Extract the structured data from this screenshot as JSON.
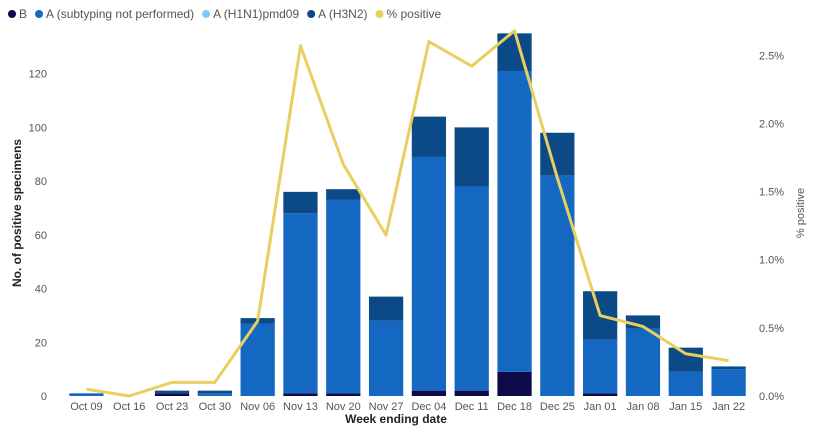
{
  "chart_data": {
    "type": "bar",
    "stacked": true,
    "categories": [
      "Oct 09",
      "Oct 16",
      "Oct 23",
      "Oct 30",
      "Nov 06",
      "Nov 13",
      "Nov 20",
      "Nov 27",
      "Dec 04",
      "Dec 11",
      "Dec 18",
      "Dec 25",
      "Jan 01",
      "Jan 08",
      "Jan 15",
      "Jan 22"
    ],
    "series": [
      {
        "name": "B",
        "color": "#0d0a4a",
        "values": [
          0,
          0,
          1,
          0,
          0,
          1,
          1,
          0,
          2,
          2,
          9,
          0,
          1,
          0,
          0,
          0
        ]
      },
      {
        "name": "A (subtyping not performed)",
        "color": "#1468c2",
        "values": [
          1,
          0,
          0,
          1,
          27,
          67,
          72,
          28,
          87,
          76,
          112,
          82,
          20,
          25,
          9,
          10
        ]
      },
      {
        "name": "A (H1N1)pmd09",
        "color": "#86c8f0",
        "values": [
          0,
          0,
          0,
          0,
          0,
          0,
          0,
          0,
          0,
          0,
          0,
          0,
          0,
          0,
          0,
          0
        ]
      },
      {
        "name": "A (H3N2)",
        "color": "#0b4a86",
        "values": [
          0,
          0,
          1,
          1,
          2,
          8,
          4,
          9,
          15,
          22,
          14,
          16,
          18,
          5,
          9,
          1
        ]
      }
    ],
    "line_series": {
      "name": "% positive",
      "color": "#e8cf5e",
      "values": [
        0.05,
        0.0,
        0.1,
        0.1,
        0.55,
        2.57,
        1.7,
        1.18,
        2.6,
        2.42,
        2.68,
        1.6,
        0.59,
        0.51,
        0.31,
        0.26
      ]
    },
    "xlabel": "Week ending date",
    "ylabel": "No. of positive specimens",
    "y2label": "% positive",
    "ylim": [
      0,
      137
    ],
    "yticks": [
      0,
      20,
      40,
      60,
      80,
      100,
      120
    ],
    "y2lim": [
      0,
      2.7
    ],
    "y2ticks": [
      0,
      0.5,
      1.0,
      1.5,
      2.0,
      2.5
    ],
    "y2tick_labels": [
      "0.0%",
      "0.5%",
      "1.0%",
      "1.5%",
      "2.0%",
      "2.5%"
    ],
    "legend_position": "top-left",
    "grid": false
  }
}
